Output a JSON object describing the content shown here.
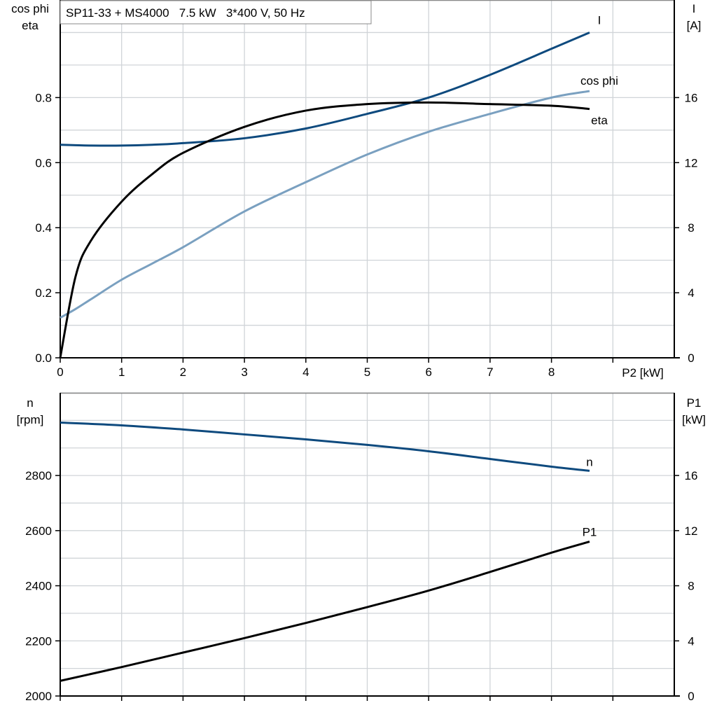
{
  "title": "SP11-33 + MS4000   7.5 kW   3*400 V, 50 Hz",
  "colors": {
    "I": "#0e4a7e",
    "cos_phi": "#7aa0c0",
    "eta": "#000000",
    "n": "#0e4a7e",
    "P1": "#000000",
    "grid": "#d0d4d8"
  },
  "chart_data": [
    {
      "type": "line",
      "xlabel": "P2 [kW]",
      "xlim": [
        0,
        10
      ],
      "x_ticks": [
        "0",
        "1",
        "2",
        "3",
        "4",
        "5",
        "6",
        "7",
        "8"
      ],
      "ylabel_left": [
        "cos phi",
        "eta"
      ],
      "ylim_left": [
        0,
        1.1
      ],
      "y_ticks_left": [
        "0.0",
        "0.2",
        "0.4",
        "0.6",
        "0.8"
      ],
      "ylabel_right": [
        "I",
        "[A]"
      ],
      "ylim_right": [
        0,
        22
      ],
      "y_ticks_right": [
        "0",
        "4",
        "8",
        "12",
        "16"
      ],
      "grid": true,
      "x": [
        0,
        0.25,
        0.5,
        1,
        1.5,
        2,
        3,
        4,
        5,
        6,
        7,
        8,
        8.62
      ],
      "series": [
        {
          "name": "I",
          "axis": "right",
          "values": [
            13.1,
            13.07,
            13.05,
            13.05,
            13.1,
            13.2,
            13.5,
            14.1,
            15.0,
            16.0,
            17.4,
            19.0,
            20.0
          ]
        },
        {
          "name": "cos phi",
          "axis": "left",
          "values": [
            0.123,
            0.15,
            0.18,
            0.24,
            0.29,
            0.34,
            0.45,
            0.54,
            0.625,
            0.695,
            0.75,
            0.8,
            0.82
          ]
        },
        {
          "name": "eta",
          "axis": "left",
          "values": [
            0.0,
            0.25,
            0.36,
            0.48,
            0.565,
            0.63,
            0.71,
            0.76,
            0.78,
            0.785,
            0.78,
            0.775,
            0.765
          ]
        }
      ]
    },
    {
      "type": "line",
      "xlim": [
        0,
        10
      ],
      "ylabel_left": [
        "n",
        "[rpm]"
      ],
      "ylim_left": [
        2000,
        3100
      ],
      "y_ticks_left": [
        "2000",
        "2200",
        "2400",
        "2600",
        "2800"
      ],
      "ylabel_right": [
        "P1",
        "[kW]"
      ],
      "ylim_right": [
        0,
        22
      ],
      "y_ticks_right": [
        "0",
        "4",
        "8",
        "12",
        "16"
      ],
      "grid": true,
      "x": [
        0,
        1,
        2,
        3,
        4,
        5,
        6,
        7,
        8,
        8.62
      ],
      "series": [
        {
          "name": "n",
          "axis": "left",
          "values": [
            2992,
            2982,
            2967,
            2949,
            2931,
            2911,
            2888,
            2860,
            2832,
            2817
          ]
        },
        {
          "name": "P1",
          "axis": "right",
          "values": [
            1.1,
            2.1,
            3.15,
            4.2,
            5.3,
            6.45,
            7.65,
            9.0,
            10.4,
            11.2
          ]
        }
      ]
    }
  ]
}
